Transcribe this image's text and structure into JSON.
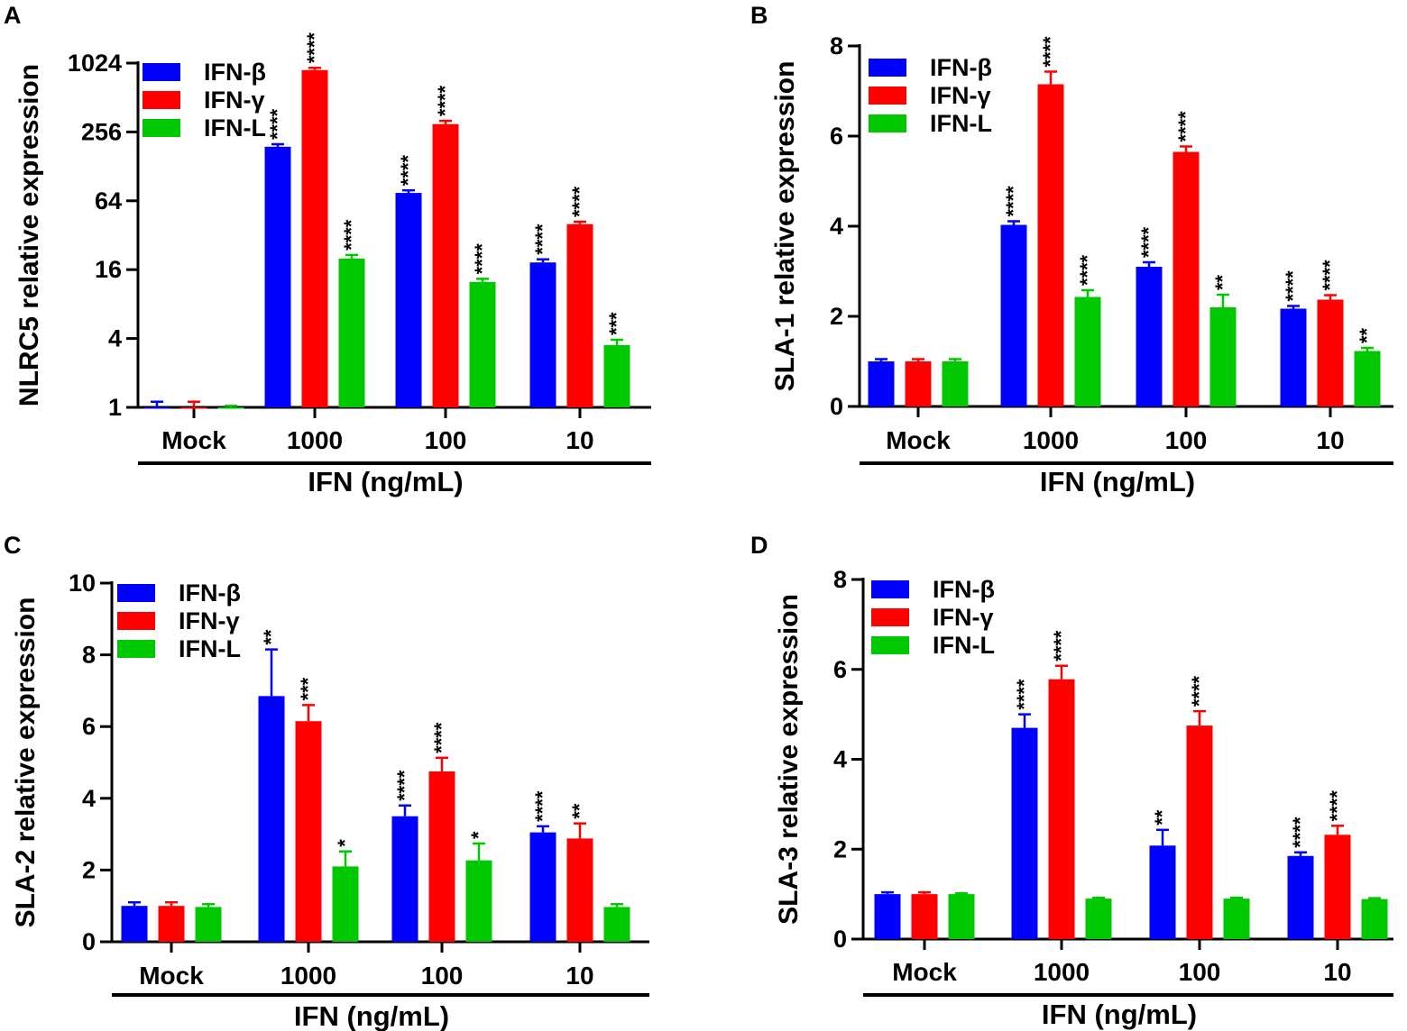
{
  "colors": {
    "IFN-β": "#0000ff",
    "IFN-γ": "#ff0000",
    "IFN-L": "#00c800",
    "axis": "#000000"
  },
  "chart_data": [
    {
      "panel": "A",
      "type": "bar",
      "scale": "log2",
      "ylabel": "NLRC5 relative expression",
      "xlabel": "IFN (ng/mL)",
      "categories": [
        "Mock",
        "1000",
        "100",
        "10"
      ],
      "ylim": [
        1,
        1024
      ],
      "yticks": [
        1,
        4,
        16,
        64,
        256,
        1024
      ],
      "legend_position": "top-left",
      "series": [
        {
          "name": "IFN-β",
          "values": [
            1,
            190,
            75,
            18.5
          ],
          "errors": [
            0.12,
            10,
            4,
            1.2
          ],
          "sig": [
            "",
            "****",
            "****",
            "****"
          ]
        },
        {
          "name": "IFN-γ",
          "values": [
            1,
            890,
            300,
            40
          ],
          "errors": [
            0.12,
            40,
            20,
            2
          ],
          "sig": [
            "",
            "****",
            "****",
            "****"
          ]
        },
        {
          "name": "IFN-L",
          "values": [
            1,
            20,
            12.5,
            3.5
          ],
          "errors": [
            0.03,
            1.5,
            0.8,
            0.4
          ],
          "sig": [
            "",
            "****",
            "****",
            "***"
          ]
        }
      ]
    },
    {
      "panel": "B",
      "type": "bar",
      "scale": "linear",
      "ylabel": "SLA-1 relative expression",
      "xlabel": "IFN (ng/mL)",
      "categories": [
        "Mock",
        "1000",
        "100",
        "10"
      ],
      "ylim": [
        0,
        8
      ],
      "yticks": [
        0,
        2,
        4,
        6,
        8
      ],
      "legend_position": "top-left",
      "series": [
        {
          "name": "IFN-β",
          "values": [
            1.0,
            4.03,
            3.1,
            2.17
          ],
          "errors": [
            0.05,
            0.08,
            0.1,
            0.06
          ],
          "sig": [
            "",
            "****",
            "****",
            "****"
          ]
        },
        {
          "name": "IFN-γ",
          "values": [
            1.0,
            7.15,
            5.65,
            2.37
          ],
          "errors": [
            0.05,
            0.28,
            0.12,
            0.1
          ],
          "sig": [
            "",
            "****",
            "****",
            "****"
          ]
        },
        {
          "name": "IFN-L",
          "values": [
            1.0,
            2.43,
            2.2,
            1.23
          ],
          "errors": [
            0.05,
            0.15,
            0.28,
            0.07
          ],
          "sig": [
            "",
            "****",
            "**",
            "**"
          ]
        }
      ]
    },
    {
      "panel": "C",
      "type": "bar",
      "scale": "linear",
      "ylabel": "SLA-2 relative expression",
      "xlabel": "IFN (ng/mL)",
      "categories": [
        "Mock",
        "1000",
        "100",
        "10"
      ],
      "ylim": [
        0,
        10
      ],
      "yticks": [
        0,
        2,
        4,
        6,
        8,
        10
      ],
      "legend_position": "top-left",
      "series": [
        {
          "name": "IFN-β",
          "values": [
            1.0,
            6.85,
            3.5,
            3.05
          ],
          "errors": [
            0.1,
            1.3,
            0.3,
            0.17
          ],
          "sig": [
            "",
            "**",
            "****",
            "****"
          ]
        },
        {
          "name": "IFN-γ",
          "values": [
            1.0,
            6.15,
            4.75,
            2.88
          ],
          "errors": [
            0.1,
            0.45,
            0.38,
            0.42
          ],
          "sig": [
            "",
            "***",
            "****",
            "**"
          ]
        },
        {
          "name": "IFN-L",
          "values": [
            0.97,
            2.1,
            2.27,
            0.97
          ],
          "errors": [
            0.08,
            0.42,
            0.47,
            0.08
          ],
          "sig": [
            "",
            "*",
            "*",
            ""
          ]
        }
      ]
    },
    {
      "panel": "D",
      "type": "bar",
      "scale": "linear",
      "ylabel": "SLA-3 relative expression",
      "xlabel": "IFN (ng/mL)",
      "categories": [
        "Mock",
        "1000",
        "100",
        "10"
      ],
      "ylim": [
        0,
        8
      ],
      "yticks": [
        0,
        2,
        4,
        6,
        8
      ],
      "legend_position": "top-left",
      "series": [
        {
          "name": "IFN-β",
          "values": [
            1.0,
            4.7,
            2.08,
            1.85
          ],
          "errors": [
            0.04,
            0.3,
            0.35,
            0.08
          ],
          "sig": [
            "",
            "****",
            "**",
            "****"
          ]
        },
        {
          "name": "IFN-γ",
          "values": [
            1.0,
            5.78,
            4.75,
            2.32
          ],
          "errors": [
            0.04,
            0.3,
            0.32,
            0.2
          ],
          "sig": [
            "",
            "****",
            "****",
            "****"
          ]
        },
        {
          "name": "IFN-L",
          "values": [
            1.0,
            0.9,
            0.9,
            0.89
          ],
          "errors": [
            0.02,
            0.02,
            0.02,
            0.02
          ],
          "sig": [
            "",
            "",
            "",
            ""
          ]
        }
      ]
    }
  ]
}
